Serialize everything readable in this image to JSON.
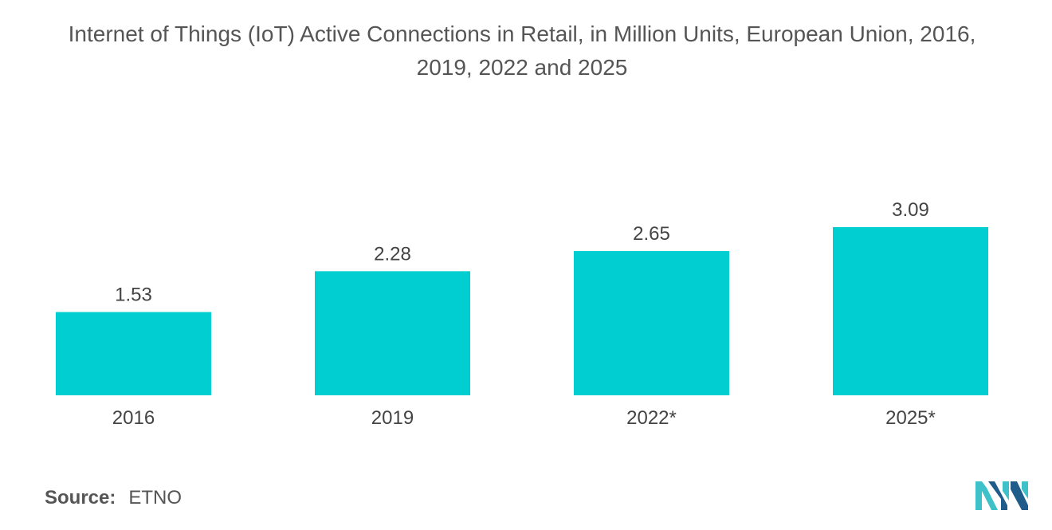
{
  "title_lines": [
    "Internet of Things (IoT) Active Connections in Retail, in Million Units, European Union, 2016,",
    "2019, 2022 and 2025"
  ],
  "source": {
    "label": "Source:",
    "value": "ETNO"
  },
  "colors": {
    "bar": "#00CED1",
    "text": "#444444",
    "logo_dark": "#1F5C8A",
    "logo_light": "#3FC1C9"
  },
  "logo": {
    "icon": "mordor-intelligence-logo"
  },
  "chart_data": {
    "type": "bar",
    "title": "Internet of Things (IoT) Active Connections in Retail, in Million Units, European Union, 2016, 2019, 2022 and 2025",
    "categories": [
      "2016",
      "2019",
      "2022*",
      "2025*"
    ],
    "values": [
      1.53,
      2.28,
      2.65,
      3.09
    ],
    "value_labels": [
      "1.53",
      "2.28",
      "2.65",
      "3.09"
    ],
    "xlabel": "",
    "ylabel": "",
    "ylim": [
      0,
      3.09
    ],
    "grid": false,
    "legend": "none"
  }
}
